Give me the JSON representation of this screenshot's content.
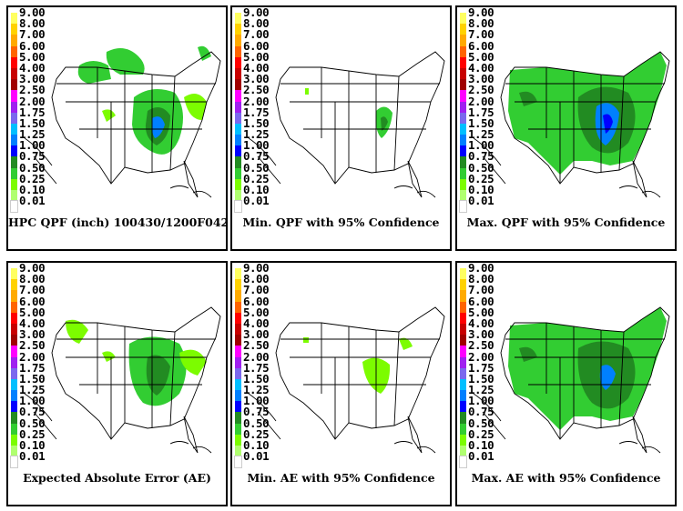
{
  "legend": {
    "labels": [
      "9.00",
      "8.00",
      "7.00",
      "6.00",
      "5.00",
      "4.00",
      "3.00",
      "2.50",
      "2.00",
      "1.75",
      "1.50",
      "1.25",
      "1.00",
      "0.75",
      "0.50",
      "0.25",
      "0.10",
      "0.01"
    ],
    "colors": [
      "#ffff60",
      "#ffd200",
      "#ffaa00",
      "#ff6400",
      "#ff0000",
      "#c80000",
      "#a00000",
      "#ff00ff",
      "#a020f0",
      "#7b68ee",
      "#00bfff",
      "#0080ff",
      "#0000ff",
      "#228b22",
      "#32cd32",
      "#7cfc00",
      "#b0ff70",
      "#ffffff"
    ]
  },
  "panels": [
    {
      "caption": "HPC QPF (inch) 100430/1200F042"
    },
    {
      "caption": "Min. QPF with 95% Confidence"
    },
    {
      "caption": "Max. QPF with 95% Confidence"
    },
    {
      "caption": "Expected Absolute Error (AE)"
    },
    {
      "caption": "Min. AE with 95% Confidence"
    },
    {
      "caption": "Max. AE with 95% Confidence"
    }
  ]
}
